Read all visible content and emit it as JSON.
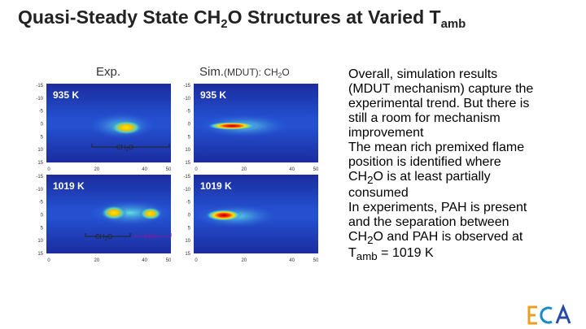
{
  "title": [
    "Quasi-Steady State CH",
    "2",
    "O Structures at Varied T",
    "amb"
  ],
  "headers": {
    "exp": "Exp.",
    "sim": "Sim.",
    "sim_detail": [
      "(MDUT): CH",
      "2",
      "O"
    ]
  },
  "panels": [
    {
      "label": "935 K"
    },
    {
      "label": "935 K"
    },
    {
      "label": "1019 K"
    },
    {
      "label": "1019 K"
    }
  ],
  "annotations": {
    "ch2o": [
      "CH",
      "2",
      "O"
    ],
    "pah": "PAH"
  },
  "y_ticks": [
    "-15",
    "-10",
    "-5",
    "0",
    "5",
    "10",
    "15"
  ],
  "x_ticks": [
    "0",
    "20",
    "40",
    "50"
  ],
  "bullets": [
    [
      "Overall, simulation results (MDUT mechanism) capture the experimental trend. But there is still a room for mechanism improvement"
    ],
    [
      "The mean rich premixed flame position is identified where CH",
      "2",
      "O is at least partially consumed"
    ],
    [
      "In experiments, PAH is present and the separation between CH",
      "2",
      "O and PAH is observed at T",
      "amb",
      " = 1019 K"
    ]
  ]
}
